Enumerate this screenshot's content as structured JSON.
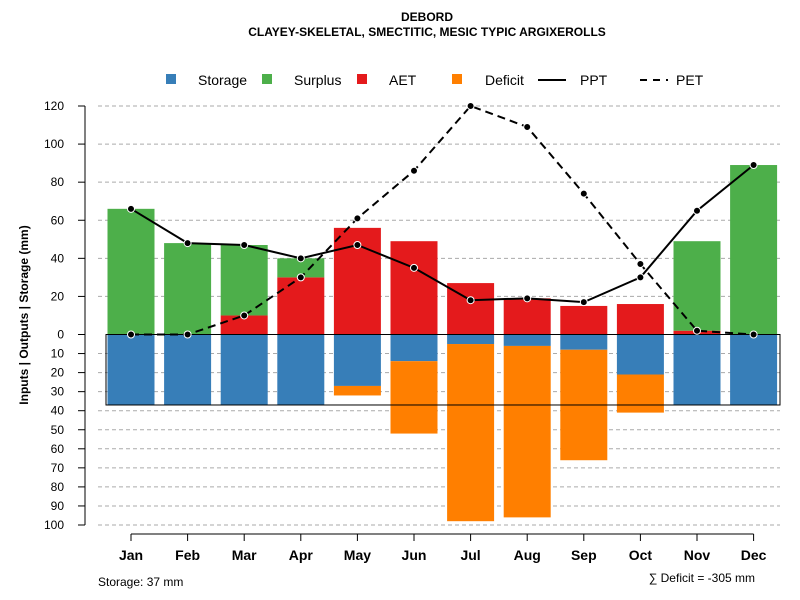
{
  "chart_data": {
    "type": "bar",
    "title": "DEBORD",
    "subtitle": "CLAYEY-SKELETAL, SMECTITIC, MESIC TYPIC ARGIXEROLLS",
    "ylabel": "Inputs | Outputs | Storage    (mm)",
    "months": [
      "Jan",
      "Feb",
      "Mar",
      "Apr",
      "May",
      "Jun",
      "Jul",
      "Aug",
      "Sep",
      "Oct",
      "Nov",
      "Dec"
    ],
    "ylim_upper": [
      0,
      120
    ],
    "ylim_lower": [
      0,
      100
    ],
    "yticks_upper": [
      "120",
      "100",
      "80",
      "60",
      "40",
      "20",
      "0"
    ],
    "yticks_lower": [
      "10",
      "20",
      "30",
      "40",
      "50",
      "60",
      "70",
      "80",
      "90",
      "100"
    ],
    "storage_capacity": 37,
    "series": [
      {
        "name": "Storage",
        "values": [
          37,
          37,
          37,
          37,
          27,
          14,
          5,
          6,
          8,
          21,
          37,
          37
        ]
      },
      {
        "name": "Surplus",
        "values": [
          66,
          48,
          37,
          10,
          0,
          0,
          0,
          0,
          0,
          0,
          47,
          89
        ]
      },
      {
        "name": "AET",
        "values": [
          0,
          0,
          10,
          30,
          56,
          49,
          27,
          19,
          15,
          16,
          2,
          0
        ]
      },
      {
        "name": "Deficit",
        "values": [
          0,
          0,
          0,
          0,
          5,
          38,
          93,
          90,
          58,
          20,
          0,
          0
        ]
      },
      {
        "name": "PPT",
        "values": [
          66,
          48,
          47,
          40,
          47,
          35,
          18,
          19,
          17,
          30,
          65,
          89
        ]
      },
      {
        "name": "PET",
        "values": [
          0,
          0,
          10,
          30,
          61,
          86,
          120,
          109,
          74,
          37,
          2,
          0
        ]
      }
    ],
    "legend": [
      {
        "label": "Storage",
        "kind": "square",
        "color": "#377eb8"
      },
      {
        "label": "Surplus",
        "kind": "square",
        "color": "#4daf4a"
      },
      {
        "label": "AET",
        "kind": "square",
        "color": "#e41a1c"
      },
      {
        "label": "Deficit",
        "kind": "square",
        "color": "#ff7f00"
      },
      {
        "label": "PPT",
        "kind": "solid-line",
        "color": "#000000"
      },
      {
        "label": "PET",
        "kind": "dashed-line",
        "color": "#000000"
      }
    ],
    "colors": {
      "storage": "#377eb8",
      "surplus": "#4daf4a",
      "aet": "#e41a1c",
      "deficit": "#ff7f00",
      "grid": "#aaaaaa"
    },
    "footer_left": "Storage: 37 mm",
    "footer_right": "∑ Deficit = -305 mm"
  }
}
